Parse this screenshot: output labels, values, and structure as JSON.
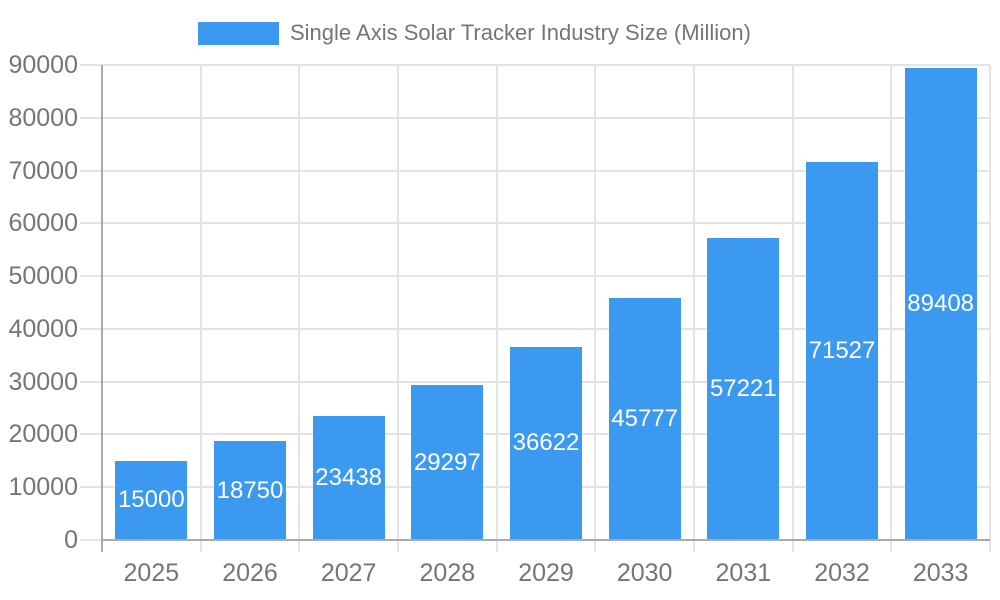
{
  "chart_data": {
    "type": "bar",
    "title": "Single Axis Solar Tracker Industry Size (Million)",
    "categories": [
      "2025",
      "2026",
      "2027",
      "2028",
      "2029",
      "2030",
      "2031",
      "2032",
      "2033"
    ],
    "values": [
      15000,
      18750,
      23438,
      29297,
      36622,
      45777,
      57221,
      71527,
      89408
    ],
    "xlabel": "",
    "ylabel": "",
    "ylim": [
      0,
      90000
    ],
    "ytick_step": 10000,
    "grid": true,
    "legend_position": "top-center",
    "value_labels": "inside-center",
    "colors": {
      "bar": "#3B99F0",
      "grid": "#E4E4E4",
      "axis": "#AAAAAA",
      "text": "#757575",
      "value_label": "#FFFFFF",
      "background": "#FFFFFF"
    }
  }
}
